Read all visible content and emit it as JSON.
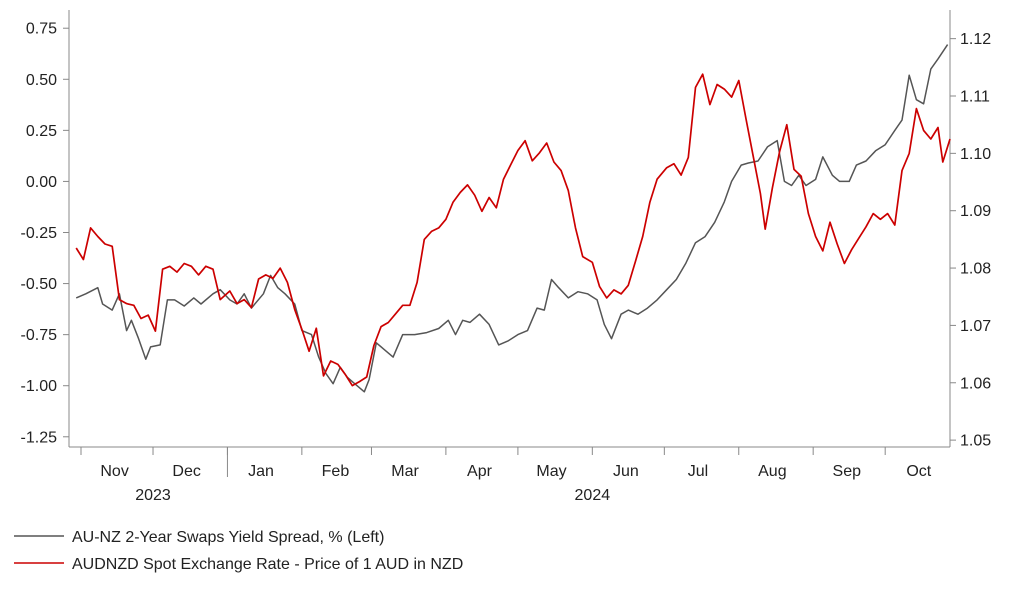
{
  "chart_data": {
    "type": "line",
    "title": "",
    "left_axis": {
      "range": [
        -1.3,
        0.8
      ],
      "ticks": [
        "0.75",
        "0.50",
        "0.25",
        "0.00",
        "-0.25",
        "-0.50",
        "-0.75",
        "-1.00",
        "-1.25"
      ],
      "tick_values": [
        0.75,
        0.5,
        0.25,
        0.0,
        -0.25,
        -0.5,
        -0.75,
        -1.0,
        -1.25
      ]
    },
    "right_axis": {
      "range": [
        1.0488,
        1.1236
      ],
      "ticks": [
        "1.12",
        "1.11",
        "1.10",
        "1.09",
        "1.08",
        "1.07",
        "1.06",
        "1.05"
      ],
      "tick_values": [
        1.12,
        1.11,
        1.1,
        1.09,
        1.08,
        1.07,
        1.06,
        1.05
      ]
    },
    "x_axis": {
      "start": "2023-10-27",
      "end": "2024-10-28",
      "month_labels": [
        {
          "label": "Nov",
          "date": "2023-11-15"
        },
        {
          "label": "Dec",
          "date": "2023-12-15"
        },
        {
          "label": "Jan",
          "date": "2024-01-15"
        },
        {
          "label": "Feb",
          "date": "2024-02-15"
        },
        {
          "label": "Mar",
          "date": "2024-03-15"
        },
        {
          "label": "Apr",
          "date": "2024-04-15"
        },
        {
          "label": "May",
          "date": "2024-05-15"
        },
        {
          "label": "Jun",
          "date": "2024-06-15"
        },
        {
          "label": "Jul",
          "date": "2024-07-15"
        },
        {
          "label": "Aug",
          "date": "2024-08-15"
        },
        {
          "label": "Sep",
          "date": "2024-09-15"
        },
        {
          "label": "Oct",
          "date": "2024-10-15"
        }
      ],
      "month_ticks": [
        "2023-11-01",
        "2023-12-01",
        "2024-01-01",
        "2024-02-01",
        "2024-03-01",
        "2024-04-01",
        "2024-05-01",
        "2024-06-01",
        "2024-07-01",
        "2024-08-01",
        "2024-09-01",
        "2024-10-01"
      ],
      "year_labels": [
        {
          "label": "2023",
          "date": "2023-12-01"
        },
        {
          "label": "2024",
          "date": "2024-06-01"
        }
      ]
    },
    "series": [
      {
        "name": "AU-NZ 2-Year Swaps Yield Spread, % (Left)",
        "color": "#555555",
        "axis": "left",
        "points": [
          [
            "2023-10-30",
            -0.57
          ],
          [
            "2023-11-03",
            -0.55
          ],
          [
            "2023-11-08",
            -0.52
          ],
          [
            "2023-11-10",
            -0.6
          ],
          [
            "2023-11-14",
            -0.63
          ],
          [
            "2023-11-17",
            -0.55
          ],
          [
            "2023-11-20",
            -0.73
          ],
          [
            "2023-11-22",
            -0.68
          ],
          [
            "2023-11-25",
            -0.77
          ],
          [
            "2023-11-28",
            -0.87
          ],
          [
            "2023-11-30",
            -0.81
          ],
          [
            "2023-12-04",
            -0.8
          ],
          [
            "2023-12-07",
            -0.58
          ],
          [
            "2023-12-10",
            -0.58
          ],
          [
            "2023-12-14",
            -0.61
          ],
          [
            "2023-12-18",
            -0.57
          ],
          [
            "2023-12-21",
            -0.6
          ],
          [
            "2023-12-26",
            -0.55
          ],
          [
            "2023-12-29",
            -0.53
          ],
          [
            "2024-01-02",
            -0.58
          ],
          [
            "2024-01-05",
            -0.6
          ],
          [
            "2024-01-08",
            -0.55
          ],
          [
            "2024-01-11",
            -0.62
          ],
          [
            "2024-01-16",
            -0.55
          ],
          [
            "2024-01-19",
            -0.46
          ],
          [
            "2024-01-22",
            -0.52
          ],
          [
            "2024-01-25",
            -0.55
          ],
          [
            "2024-01-29",
            -0.6
          ],
          [
            "2024-02-01",
            -0.73
          ],
          [
            "2024-02-05",
            -0.75
          ],
          [
            "2024-02-08",
            -0.86
          ],
          [
            "2024-02-11",
            -0.94
          ],
          [
            "2024-02-14",
            -0.99
          ],
          [
            "2024-02-17",
            -0.91
          ],
          [
            "2024-02-20",
            -0.96
          ],
          [
            "2024-02-23",
            -0.99
          ],
          [
            "2024-02-27",
            -1.03
          ],
          [
            "2024-02-29",
            -0.97
          ],
          [
            "2024-03-03",
            -0.79
          ],
          [
            "2024-03-06",
            -0.82
          ],
          [
            "2024-03-10",
            -0.86
          ],
          [
            "2024-03-14",
            -0.75
          ],
          [
            "2024-03-19",
            -0.75
          ],
          [
            "2024-03-24",
            -0.74
          ],
          [
            "2024-03-29",
            -0.72
          ],
          [
            "2024-04-02",
            -0.68
          ],
          [
            "2024-04-05",
            -0.75
          ],
          [
            "2024-04-08",
            -0.68
          ],
          [
            "2024-04-11",
            -0.69
          ],
          [
            "2024-04-15",
            -0.65
          ],
          [
            "2024-04-19",
            -0.7
          ],
          [
            "2024-04-23",
            -0.8
          ],
          [
            "2024-04-27",
            -0.78
          ],
          [
            "2024-05-01",
            -0.75
          ],
          [
            "2024-05-05",
            -0.73
          ],
          [
            "2024-05-09",
            -0.62
          ],
          [
            "2024-05-12",
            -0.63
          ],
          [
            "2024-05-15",
            -0.48
          ],
          [
            "2024-05-18",
            -0.52
          ],
          [
            "2024-05-22",
            -0.57
          ],
          [
            "2024-05-26",
            -0.54
          ],
          [
            "2024-05-30",
            -0.55
          ],
          [
            "2024-06-03",
            -0.58
          ],
          [
            "2024-06-06",
            -0.7
          ],
          [
            "2024-06-09",
            -0.77
          ],
          [
            "2024-06-13",
            -0.65
          ],
          [
            "2024-06-16",
            -0.63
          ],
          [
            "2024-06-20",
            -0.65
          ],
          [
            "2024-06-24",
            -0.62
          ],
          [
            "2024-06-28",
            -0.58
          ],
          [
            "2024-07-02",
            -0.53
          ],
          [
            "2024-07-06",
            -0.48
          ],
          [
            "2024-07-10",
            -0.4
          ],
          [
            "2024-07-14",
            -0.3
          ],
          [
            "2024-07-18",
            -0.27
          ],
          [
            "2024-07-22",
            -0.2
          ],
          [
            "2024-07-26",
            -0.1
          ],
          [
            "2024-07-29",
            0.0
          ],
          [
            "2024-08-02",
            0.08
          ],
          [
            "2024-08-05",
            0.09
          ],
          [
            "2024-08-09",
            0.1
          ],
          [
            "2024-08-13",
            0.17
          ],
          [
            "2024-08-17",
            0.2
          ],
          [
            "2024-08-20",
            0.0
          ],
          [
            "2024-08-23",
            -0.02
          ],
          [
            "2024-08-26",
            0.03
          ],
          [
            "2024-08-29",
            -0.02
          ],
          [
            "2024-09-02",
            0.01
          ],
          [
            "2024-09-05",
            0.12
          ],
          [
            "2024-09-09",
            0.03
          ],
          [
            "2024-09-12",
            0.0
          ],
          [
            "2024-09-16",
            0.0
          ],
          [
            "2024-09-19",
            0.08
          ],
          [
            "2024-09-23",
            0.1
          ],
          [
            "2024-09-27",
            0.15
          ],
          [
            "2024-10-01",
            0.18
          ],
          [
            "2024-10-05",
            0.25
          ],
          [
            "2024-10-08",
            0.3
          ],
          [
            "2024-10-11",
            0.52
          ],
          [
            "2024-10-14",
            0.4
          ],
          [
            "2024-10-17",
            0.38
          ],
          [
            "2024-10-20",
            0.55
          ],
          [
            "2024-10-23",
            0.6
          ],
          [
            "2024-10-27",
            0.67
          ]
        ]
      },
      {
        "name": "AUDNZD Spot Exchange Rate - Price of 1 AUD in NZD",
        "color": "#cc0000",
        "axis": "right",
        "points": [
          [
            "2023-10-30",
            1.0835
          ],
          [
            "2023-11-02",
            1.0815
          ],
          [
            "2023-11-05",
            1.087
          ],
          [
            "2023-11-08",
            1.0855
          ],
          [
            "2023-11-11",
            1.0842
          ],
          [
            "2023-11-14",
            1.0838
          ],
          [
            "2023-11-17",
            1.0745
          ],
          [
            "2023-11-20",
            1.0738
          ],
          [
            "2023-11-23",
            1.0735
          ],
          [
            "2023-11-26",
            1.0712
          ],
          [
            "2023-11-29",
            1.0718
          ],
          [
            "2023-12-02",
            1.069
          ],
          [
            "2023-12-05",
            1.0798
          ],
          [
            "2023-12-08",
            1.0803
          ],
          [
            "2023-12-11",
            1.0793
          ],
          [
            "2023-12-14",
            1.0808
          ],
          [
            "2023-12-17",
            1.0803
          ],
          [
            "2023-12-20",
            1.0788
          ],
          [
            "2023-12-23",
            1.0803
          ],
          [
            "2023-12-26",
            1.0798
          ],
          [
            "2023-12-29",
            1.0745
          ],
          [
            "2024-01-02",
            1.076
          ],
          [
            "2024-01-05",
            1.0738
          ],
          [
            "2024-01-08",
            1.0745
          ],
          [
            "2024-01-11",
            1.0731
          ],
          [
            "2024-01-14",
            1.0781
          ],
          [
            "2024-01-17",
            1.0788
          ],
          [
            "2024-01-20",
            1.0782
          ],
          [
            "2024-01-23",
            1.08
          ],
          [
            "2024-01-26",
            1.0775
          ],
          [
            "2024-01-29",
            1.0728
          ],
          [
            "2024-02-01",
            1.0693
          ],
          [
            "2024-02-04",
            1.0655
          ],
          [
            "2024-02-07",
            1.0695
          ],
          [
            "2024-02-10",
            1.0612
          ],
          [
            "2024-02-13",
            1.0638
          ],
          [
            "2024-02-16",
            1.0632
          ],
          [
            "2024-02-19",
            1.0615
          ],
          [
            "2024-02-22",
            1.0595
          ],
          [
            "2024-02-25",
            1.0602
          ],
          [
            "2024-02-28",
            1.061
          ],
          [
            "2024-03-02",
            1.0665
          ],
          [
            "2024-03-05",
            1.0698
          ],
          [
            "2024-03-08",
            1.0705
          ],
          [
            "2024-03-11",
            1.072
          ],
          [
            "2024-03-14",
            1.0735
          ],
          [
            "2024-03-17",
            1.0735
          ],
          [
            "2024-03-20",
            1.0775
          ],
          [
            "2024-03-23",
            1.085
          ],
          [
            "2024-03-26",
            1.0864
          ],
          [
            "2024-03-29",
            1.087
          ],
          [
            "2024-04-01",
            1.0885
          ],
          [
            "2024-04-04",
            1.0915
          ],
          [
            "2024-04-07",
            1.0932
          ],
          [
            "2024-04-10",
            1.0945
          ],
          [
            "2024-04-13",
            1.0927
          ],
          [
            "2024-04-16",
            1.0899
          ],
          [
            "2024-04-19",
            1.0923
          ],
          [
            "2024-04-22",
            1.0905
          ],
          [
            "2024-04-25",
            1.0955
          ],
          [
            "2024-04-28",
            1.098
          ],
          [
            "2024-05-01",
            1.1005
          ],
          [
            "2024-05-04",
            1.1022
          ],
          [
            "2024-05-07",
            1.0987
          ],
          [
            "2024-05-10",
            1.1001
          ],
          [
            "2024-05-13",
            1.1018
          ],
          [
            "2024-05-16",
            1.0985
          ],
          [
            "2024-05-19",
            1.097
          ],
          [
            "2024-05-22",
            1.0935
          ],
          [
            "2024-05-25",
            1.087
          ],
          [
            "2024-05-28",
            1.082
          ],
          [
            "2024-06-01",
            1.081
          ],
          [
            "2024-06-04",
            1.0768
          ],
          [
            "2024-06-07",
            1.0748
          ],
          [
            "2024-06-10",
            1.0762
          ],
          [
            "2024-06-13",
            1.0755
          ],
          [
            "2024-06-16",
            1.077
          ],
          [
            "2024-06-19",
            1.0812
          ],
          [
            "2024-06-22",
            1.0855
          ],
          [
            "2024-06-25",
            1.0915
          ],
          [
            "2024-06-28",
            1.0955
          ],
          [
            "2024-07-02",
            1.0975
          ],
          [
            "2024-07-05",
            1.0982
          ],
          [
            "2024-07-08",
            1.0962
          ],
          [
            "2024-07-11",
            1.0993
          ],
          [
            "2024-07-14",
            1.1115
          ],
          [
            "2024-07-17",
            1.1138
          ],
          [
            "2024-07-20",
            1.1085
          ],
          [
            "2024-07-23",
            1.112
          ],
          [
            "2024-07-26",
            1.1112
          ],
          [
            "2024-07-29",
            1.1098
          ],
          [
            "2024-08-01",
            1.1127
          ],
          [
            "2024-08-04",
            1.106
          ],
          [
            "2024-08-07",
            1.0995
          ],
          [
            "2024-08-10",
            1.093
          ],
          [
            "2024-08-12",
            1.0868
          ],
          [
            "2024-08-15",
            1.094
          ],
          [
            "2024-08-18",
            1.1003
          ],
          [
            "2024-08-21",
            1.105
          ],
          [
            "2024-08-24",
            1.0972
          ],
          [
            "2024-08-27",
            1.096
          ],
          [
            "2024-08-30",
            1.0895
          ],
          [
            "2024-09-02",
            1.0855
          ],
          [
            "2024-09-05",
            1.083
          ],
          [
            "2024-09-08",
            1.088
          ],
          [
            "2024-09-11",
            1.0842
          ],
          [
            "2024-09-14",
            1.0808
          ],
          [
            "2024-09-17",
            1.0832
          ],
          [
            "2024-09-20",
            1.0852
          ],
          [
            "2024-09-23",
            1.0872
          ],
          [
            "2024-09-26",
            1.0895
          ],
          [
            "2024-09-29",
            1.0885
          ],
          [
            "2024-10-02",
            1.0895
          ],
          [
            "2024-10-05",
            1.0875
          ],
          [
            "2024-10-08",
            1.097
          ],
          [
            "2024-10-11",
            1.1
          ],
          [
            "2024-10-14",
            1.1078
          ],
          [
            "2024-10-17",
            1.104
          ],
          [
            "2024-10-20",
            1.1025
          ],
          [
            "2024-10-23",
            1.1045
          ],
          [
            "2024-10-25",
            1.0985
          ],
          [
            "2024-10-28",
            1.1025
          ]
        ]
      }
    ]
  }
}
